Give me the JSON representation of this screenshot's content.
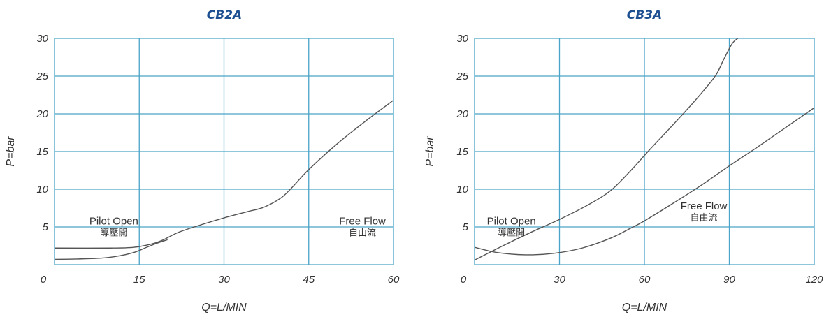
{
  "chart_data": [
    {
      "type": "line",
      "title": "CB2A",
      "xlabel": "Q=L/MIN",
      "ylabel": "P=bar",
      "xlim": [
        0,
        60
      ],
      "ylim": [
        0,
        30
      ],
      "x_ticks": [
        0,
        15,
        30,
        45,
        60
      ],
      "y_ticks": [
        5,
        10,
        15,
        20,
        25,
        30
      ],
      "grid": true,
      "colors": {
        "grid": "#4aa3c8",
        "line": "#555555"
      },
      "annotations": [
        {
          "text": "Pilot Open",
          "sub": "導壓開",
          "x": 10.5,
          "y": 5.5
        },
        {
          "text": "Free Flow",
          "sub": "自由流",
          "x": 54.5,
          "y": 5.5
        }
      ],
      "series": [
        {
          "x": [
            0,
            10,
            14,
            17,
            19,
            22,
            26,
            30,
            34,
            37,
            40,
            42,
            45,
            50,
            55,
            60
          ],
          "y": [
            2.2,
            2.2,
            2.3,
            2.7,
            3.2,
            4.3,
            5.3,
            6.2,
            7.0,
            7.6,
            8.8,
            10.2,
            12.6,
            16.0,
            19.0,
            21.8
          ]
        },
        {
          "x": [
            0,
            4,
            8,
            11,
            14,
            16,
            18,
            20
          ],
          "y": [
            0.7,
            0.75,
            0.85,
            1.1,
            1.6,
            2.2,
            2.8,
            3.3
          ]
        }
      ]
    },
    {
      "type": "line",
      "title": "CB3A",
      "xlabel": "Q=L/MIN",
      "ylabel": "P=bar",
      "xlim": [
        0,
        120
      ],
      "ylim": [
        0,
        30
      ],
      "x_ticks": [
        0,
        30,
        60,
        90,
        120
      ],
      "y_ticks": [
        5,
        10,
        15,
        20,
        25,
        30
      ],
      "grid": true,
      "colors": {
        "grid": "#4aa3c8",
        "line": "#555555"
      },
      "annotations": [
        {
          "text": "Pilot Open",
          "sub": "導壓開",
          "x": 13,
          "y": 5.5
        },
        {
          "text": "Free Flow",
          "sub": "自由流",
          "x": 81,
          "y": 7.5
        }
      ],
      "series": [
        {
          "x": [
            0,
            10,
            20,
            30,
            40,
            48,
            55,
            62,
            70,
            78,
            85,
            88,
            91,
            93
          ],
          "y": [
            0.6,
            2.5,
            4.3,
            6.0,
            7.9,
            9.8,
            12.4,
            15.3,
            18.5,
            21.8,
            25.0,
            27.2,
            29.3,
            30.0
          ]
        },
        {
          "x": [
            0,
            8,
            18,
            28,
            38,
            48,
            55,
            60,
            70,
            80,
            90,
            100,
            110,
            120
          ],
          "y": [
            2.3,
            1.6,
            1.3,
            1.5,
            2.2,
            3.5,
            4.8,
            5.8,
            8.1,
            10.5,
            13.1,
            15.6,
            18.2,
            20.8
          ]
        }
      ]
    }
  ]
}
